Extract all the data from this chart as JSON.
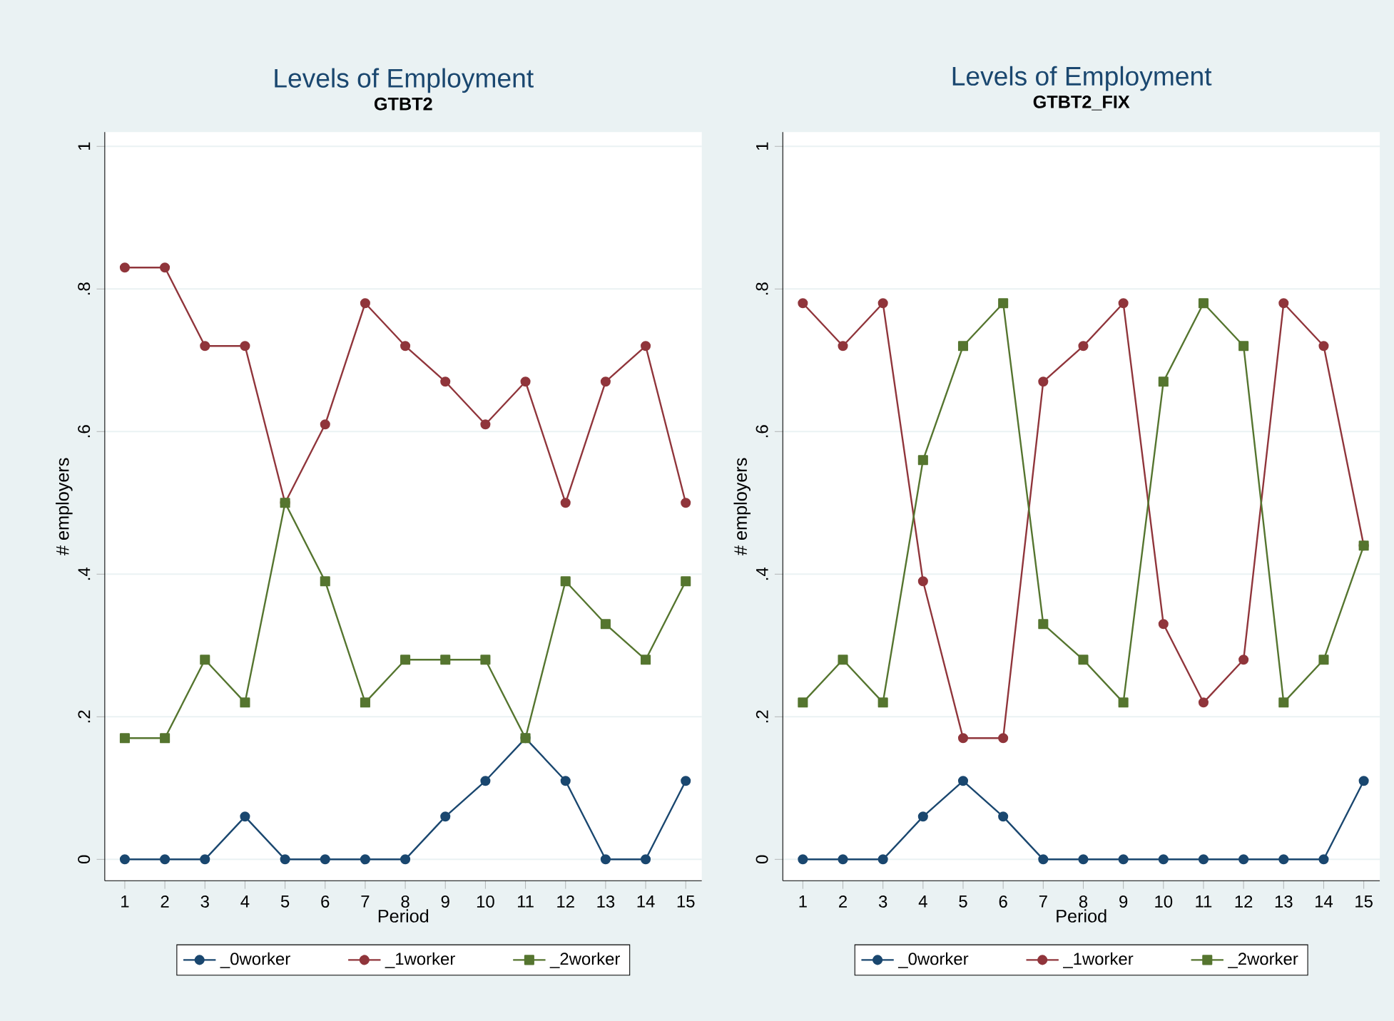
{
  "chart_data": [
    {
      "type": "line",
      "title": "Levels of Employment",
      "subtitle": "GTBT2",
      "xlabel": "Period",
      "ylabel": "# employers",
      "x": [
        1,
        2,
        3,
        4,
        5,
        6,
        7,
        8,
        9,
        10,
        11,
        12,
        13,
        14,
        15
      ],
      "series": [
        {
          "name": "_0worker",
          "color": "#1a476f",
          "marker": "circle",
          "values": [
            0,
            0,
            0,
            0.06,
            0,
            0,
            0,
            0,
            0.06,
            0.11,
            0.17,
            0.11,
            0,
            0,
            0.11
          ]
        },
        {
          "name": "_1worker",
          "color": "#90353b",
          "marker": "circle",
          "values": [
            0.83,
            0.83,
            0.72,
            0.72,
            0.5,
            0.61,
            0.78,
            0.72,
            0.67,
            0.61,
            0.67,
            0.5,
            0.67,
            0.72,
            0.5
          ]
        },
        {
          "name": "_2worker",
          "color": "#55752f",
          "marker": "square",
          "values": [
            0.17,
            0.17,
            0.28,
            0.22,
            0.5,
            0.39,
            0.22,
            0.28,
            0.28,
            0.28,
            0.17,
            0.39,
            0.33,
            0.28,
            0.39
          ]
        }
      ],
      "xlim": [
        0.5,
        15.4
      ],
      "ylim": [
        -0.03,
        1.02
      ],
      "xticks": [
        1,
        2,
        3,
        4,
        5,
        6,
        7,
        8,
        9,
        10,
        11,
        12,
        13,
        14,
        15
      ],
      "yticks": [
        0,
        {
          "value": 0.2,
          "label": ".2"
        },
        {
          "value": 0.4,
          "label": ".4"
        },
        {
          "value": 0.6,
          "label": ".6"
        },
        {
          "value": 0.8,
          "label": ".8"
        },
        1
      ],
      "grid": "y",
      "legend": "bottom"
    },
    {
      "type": "line",
      "title": "Levels of Employment",
      "subtitle": "GTBT2_FIX",
      "xlabel": "Period",
      "ylabel": "# employers",
      "x": [
        1,
        2,
        3,
        4,
        5,
        6,
        7,
        8,
        9,
        10,
        11,
        12,
        13,
        14,
        15
      ],
      "series": [
        {
          "name": "_0worker",
          "color": "#1a476f",
          "marker": "circle",
          "values": [
            0,
            0,
            0,
            0.06,
            0.11,
            0.06,
            0,
            0,
            0,
            0,
            0,
            0,
            0,
            0,
            0.11
          ]
        },
        {
          "name": "_1worker",
          "color": "#90353b",
          "marker": "circle",
          "values": [
            0.78,
            0.72,
            0.78,
            0.39,
            0.17,
            0.17,
            0.67,
            0.72,
            0.78,
            0.33,
            0.22,
            0.28,
            0.78,
            0.72,
            0.44
          ]
        },
        {
          "name": "_2worker",
          "color": "#55752f",
          "marker": "square",
          "values": [
            0.22,
            0.28,
            0.22,
            0.56,
            0.72,
            0.78,
            0.33,
            0.28,
            0.22,
            0.67,
            0.78,
            0.72,
            0.22,
            0.28,
            0.44
          ]
        }
      ],
      "xlim": [
        0.5,
        15.4
      ],
      "ylim": [
        -0.03,
        1.02
      ],
      "xticks": [
        1,
        2,
        3,
        4,
        5,
        6,
        7,
        8,
        9,
        10,
        11,
        12,
        13,
        14,
        15
      ],
      "yticks": [
        0,
        {
          "value": 0.2,
          "label": ".2"
        },
        {
          "value": 0.4,
          "label": ".4"
        },
        {
          "value": 0.6,
          "label": ".6"
        },
        {
          "value": 0.8,
          "label": ".8"
        },
        1
      ],
      "grid": "y",
      "legend": "bottom"
    }
  ]
}
